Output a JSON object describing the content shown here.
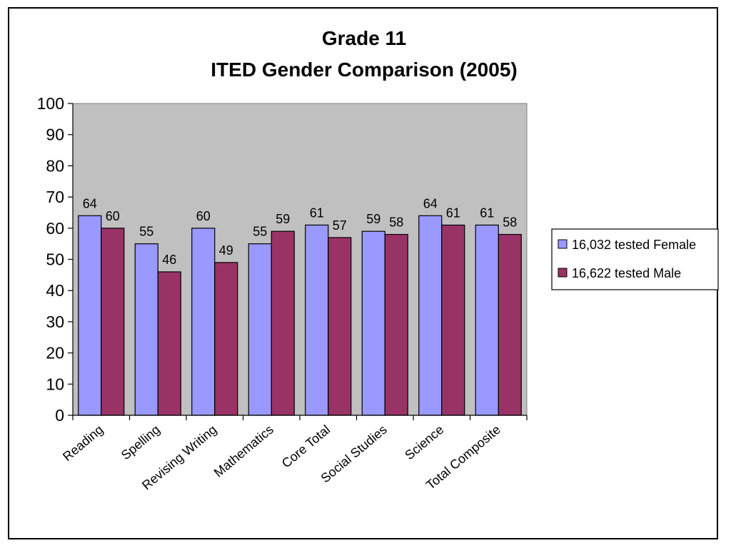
{
  "chart_data": {
    "type": "bar",
    "title": [
      "Grade 11",
      "ITED Gender Comparison (2005)"
    ],
    "xlabel": "",
    "ylabel": "",
    "ylim": [
      0,
      100
    ],
    "yticks": [
      0,
      10,
      20,
      30,
      40,
      50,
      60,
      70,
      80,
      90,
      100
    ],
    "grid": false,
    "legend_position": "right",
    "categories": [
      "Reading",
      "Spelling",
      "Revising Writing",
      "Mathematics",
      "Core Total",
      "Social Studies",
      "Science",
      "Total Composite"
    ],
    "series": [
      {
        "name": "16,032 tested Female",
        "color": "#9999ff",
        "values": [
          64,
          55,
          60,
          55,
          61,
          59,
          64,
          61
        ]
      },
      {
        "name": "16,622 tested Male",
        "color": "#993366",
        "values": [
          60,
          46,
          49,
          59,
          57,
          58,
          61,
          58
        ]
      }
    ],
    "plot_background": "#c0c0c0"
  }
}
